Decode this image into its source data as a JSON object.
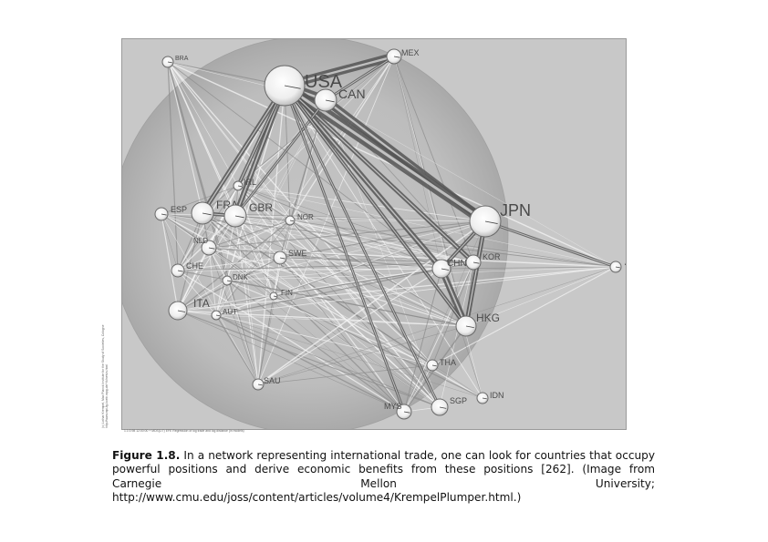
{
  "figure": {
    "nodes": [
      {
        "id": "USA",
        "label": "USA"
      },
      {
        "id": "MEX",
        "label": "MEX"
      },
      {
        "id": "CAN",
        "label": "CAN"
      },
      {
        "id": "BRA",
        "label": "BRA"
      },
      {
        "id": "IRL",
        "label": "IRL"
      },
      {
        "id": "FRA",
        "label": "FRA"
      },
      {
        "id": "GBR",
        "label": "GBR"
      },
      {
        "id": "ESP",
        "label": "ESP"
      },
      {
        "id": "NOR",
        "label": "NOR"
      },
      {
        "id": "NLD",
        "label": "NLD"
      },
      {
        "id": "SWE",
        "label": "SWE"
      },
      {
        "id": "CHE",
        "label": "CHE"
      },
      {
        "id": "DNK",
        "label": "DNK"
      },
      {
        "id": "FIN",
        "label": "FIN"
      },
      {
        "id": "ITA",
        "label": "ITA"
      },
      {
        "id": "AUT",
        "label": "AUT"
      },
      {
        "id": "SAU",
        "label": "SAU"
      },
      {
        "id": "JPN",
        "label": "JPN"
      },
      {
        "id": "AUS",
        "label": "AUS"
      },
      {
        "id": "CHN",
        "label": "CHN"
      },
      {
        "id": "KOR",
        "label": "KOR"
      },
      {
        "id": "HKG",
        "label": "HKG"
      },
      {
        "id": "THA",
        "label": "THA"
      },
      {
        "id": "IDN",
        "label": "IDN"
      },
      {
        "id": "SGP",
        "label": "SGP"
      },
      {
        "id": "MYS",
        "label": "MYS"
      }
    ],
    "side_credit": [
      "(c) Lothar Krempel, Max Planck Institute for the Study of Societies, Cologne",
      "http://www.mpi-fg-koeln.mpg.de/~lk/netvis.html"
    ],
    "bottom_note": "1.1:0.98   12:00:00 +   MDS(1/7) EFE Regression of log trade and log distance (in models)"
  },
  "caption": {
    "label": "Figure 1.8.",
    "text": "In a network representing international trade, one can look for countries that occupy powerful positions and derive economic benefits from these positions [262]. (Image from Carnegie Mellon University; http://www.cmu.edu/joss/content/articles/volume4/KrempelPlumper.html.)"
  }
}
